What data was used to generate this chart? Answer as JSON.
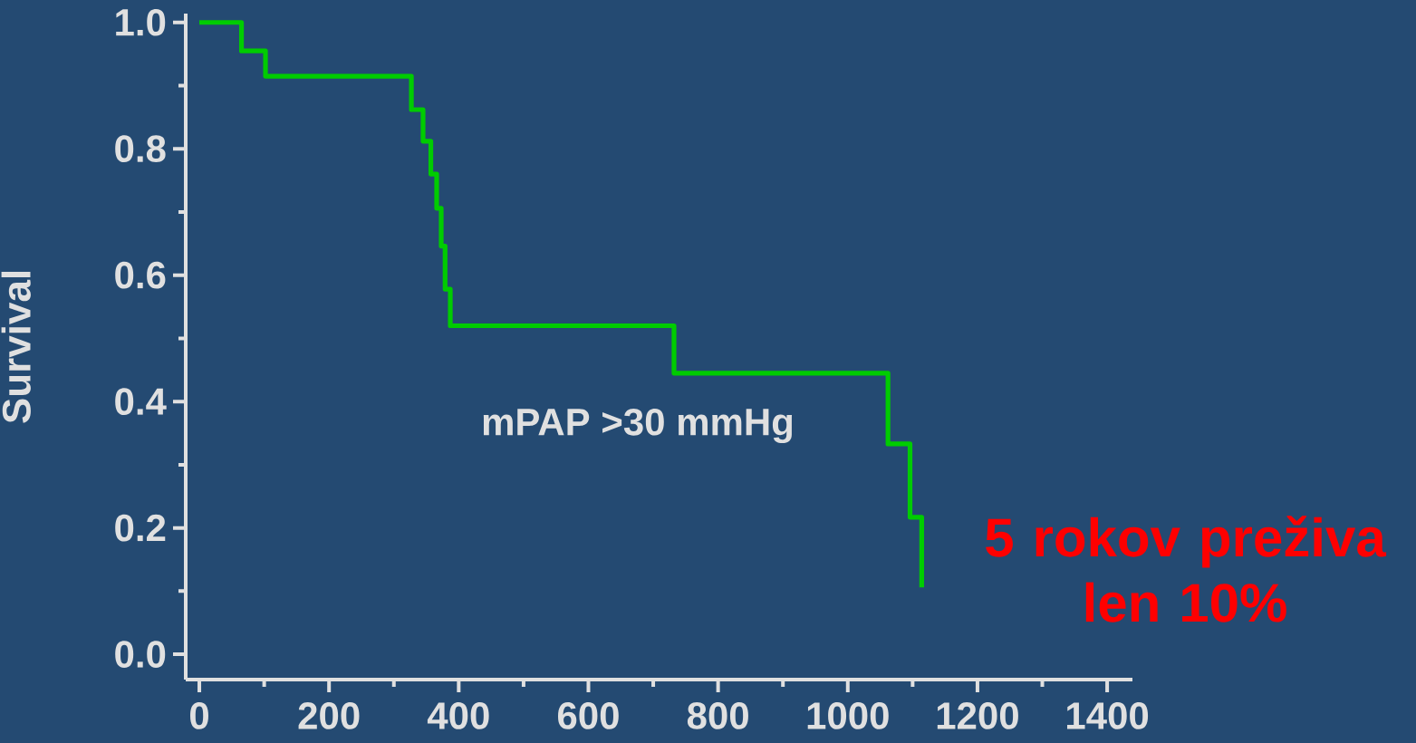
{
  "chart_data": {
    "type": "step",
    "ylabel": "Survival",
    "annotations": [
      "mPAP >30 mmHg",
      "5 rokov preživa len 10%"
    ],
    "series": [
      {
        "color": "#00cc00",
        "x": [
          0,
          65,
          102,
          327,
          345,
          357,
          366,
          373,
          379,
          387,
          732,
          1062,
          1096,
          1114
        ],
        "values": [
          1.0,
          0.955,
          0.915,
          0.862,
          0.812,
          0.76,
          0.706,
          0.646,
          0.578,
          0.52,
          0.445,
          0.333,
          0.217,
          0.106
        ]
      }
    ],
    "xlim": [
      -21,
      1439
    ],
    "ylim": [
      -0.04,
      1.014
    ],
    "xticks": [
      0,
      200,
      400,
      600,
      800,
      1000,
      1200,
      1400
    ],
    "yticks": [
      {
        "value": 0,
        "label": "0.0"
      },
      {
        "value": 0.2,
        "label": "0.2"
      },
      {
        "value": 0.4,
        "label": "0.4"
      },
      {
        "value": 0.6,
        "label": "0.6"
      },
      {
        "value": 0.8,
        "label": "0.8"
      },
      {
        "value": 1,
        "label": "1.0"
      }
    ]
  }
}
